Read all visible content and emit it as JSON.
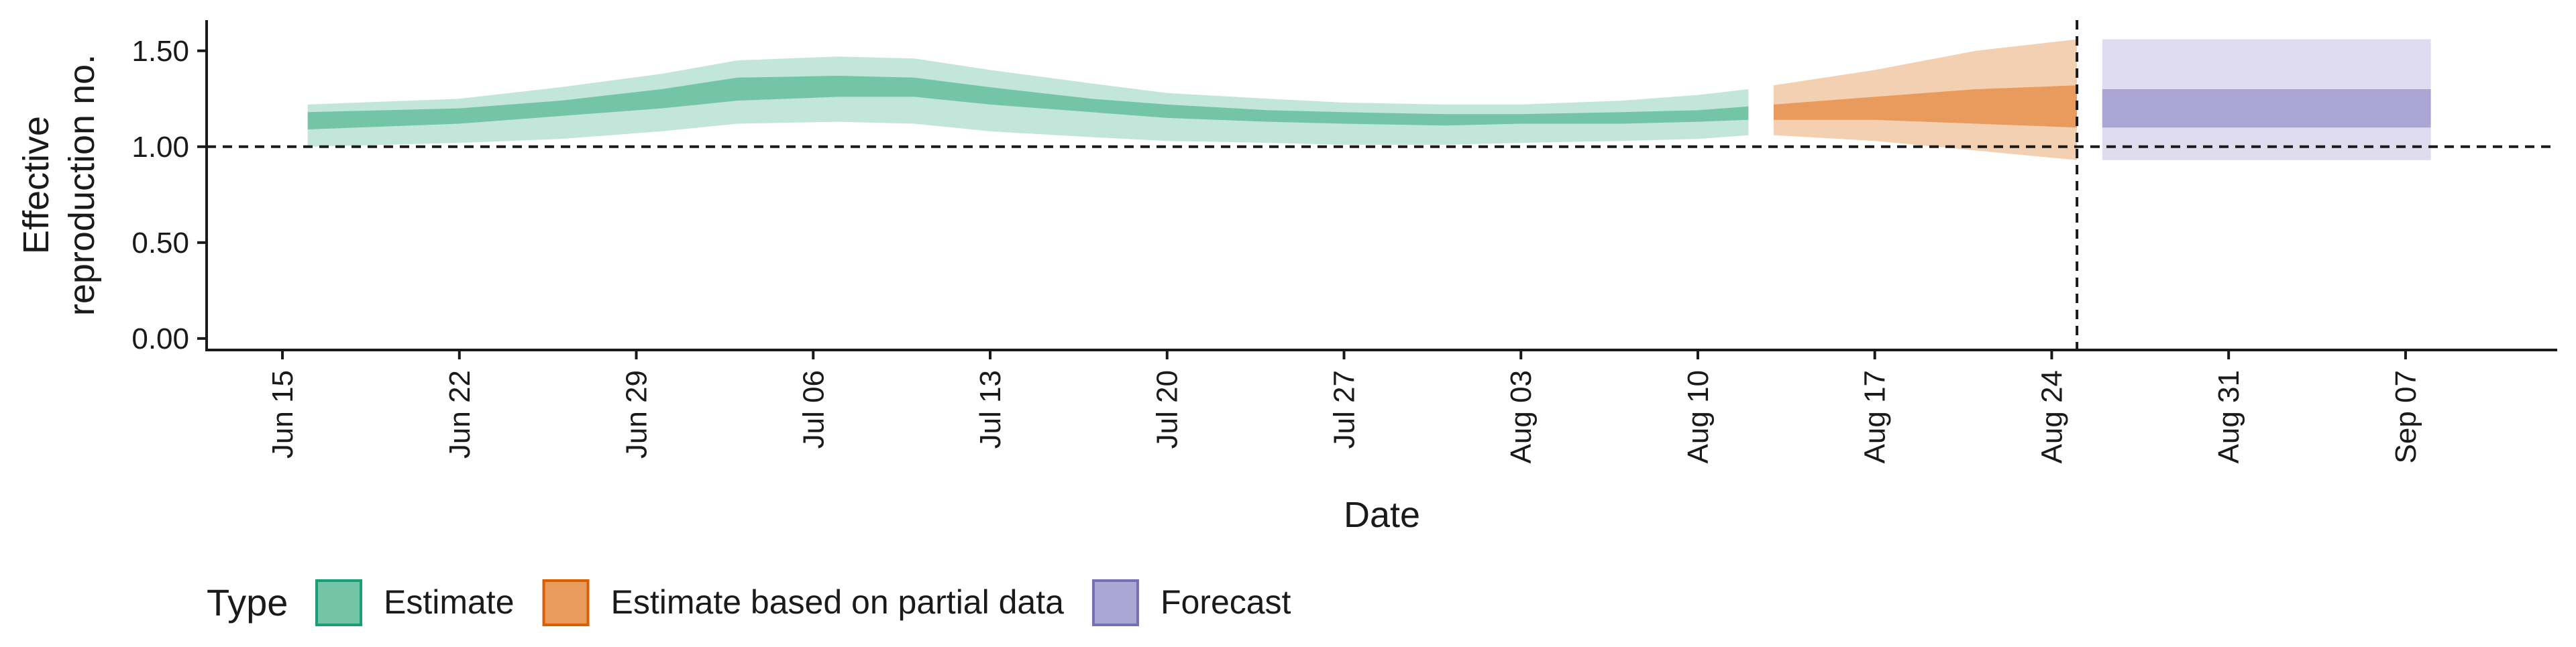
{
  "chart_data": {
    "type": "area",
    "title": "",
    "xlabel": "Date",
    "ylabel_lines": [
      "Effective",
      "reproduction no."
    ],
    "x_tick_labels": [
      "Jun 15",
      "Jun 22",
      "Jun 29",
      "Jul 06",
      "Jul 13",
      "Jul 20",
      "Jul 27",
      "Aug 03",
      "Aug 10",
      "Aug 17",
      "Aug 24",
      "Aug 31",
      "Sep 07"
    ],
    "x_ticks": [
      "2020-06-15",
      "2020-06-22",
      "2020-06-29",
      "2020-07-06",
      "2020-07-13",
      "2020-07-20",
      "2020-07-27",
      "2020-08-03",
      "2020-08-10",
      "2020-08-17",
      "2020-08-24",
      "2020-08-31",
      "2020-09-07"
    ],
    "xlim": [
      "2020-06-12",
      "2020-09-13"
    ],
    "y_ticks": [
      0.0,
      0.5,
      1.0,
      1.5
    ],
    "y_tick_labels": [
      "0.00",
      "0.50",
      "1.00",
      "1.50"
    ],
    "ylim": [
      -0.06,
      1.66
    ],
    "reference_line_y": 1.0,
    "reference_line_x": "2020-08-25",
    "grid": false,
    "legend": {
      "position": "bottom-left",
      "title": "Type",
      "entries": [
        {
          "label": "Estimate",
          "fill": "#74c4a8",
          "border": "#1b9e77"
        },
        {
          "label": "Estimate based on partial data",
          "fill": "#e99b5e",
          "border": "#d95f02"
        },
        {
          "label": "Forecast",
          "fill": "#aba6d3",
          "border": "#7570b3"
        }
      ]
    },
    "series": [
      {
        "name": "Estimate",
        "outer_color": "#c3e6da",
        "inner_color": "#74c4a8",
        "points": [
          {
            "date": "2020-06-16",
            "outer_low": 1.0,
            "outer_high": 1.22,
            "inner_low": 1.09,
            "inner_high": 1.18
          },
          {
            "date": "2020-06-22",
            "outer_low": 1.02,
            "outer_high": 1.25,
            "inner_low": 1.12,
            "inner_high": 1.2
          },
          {
            "date": "2020-06-26",
            "outer_low": 1.04,
            "outer_high": 1.31,
            "inner_low": 1.16,
            "inner_high": 1.24
          },
          {
            "date": "2020-06-30",
            "outer_low": 1.08,
            "outer_high": 1.38,
            "inner_low": 1.2,
            "inner_high": 1.3
          },
          {
            "date": "2020-07-03",
            "outer_low": 1.12,
            "outer_high": 1.45,
            "inner_low": 1.24,
            "inner_high": 1.36
          },
          {
            "date": "2020-07-07",
            "outer_low": 1.13,
            "outer_high": 1.47,
            "inner_low": 1.26,
            "inner_high": 1.37
          },
          {
            "date": "2020-07-10",
            "outer_low": 1.12,
            "outer_high": 1.46,
            "inner_low": 1.26,
            "inner_high": 1.36
          },
          {
            "date": "2020-07-13",
            "outer_low": 1.08,
            "outer_high": 1.4,
            "inner_low": 1.22,
            "inner_high": 1.31
          },
          {
            "date": "2020-07-17",
            "outer_low": 1.05,
            "outer_high": 1.33,
            "inner_low": 1.18,
            "inner_high": 1.25
          },
          {
            "date": "2020-07-20",
            "outer_low": 1.03,
            "outer_high": 1.28,
            "inner_low": 1.15,
            "inner_high": 1.22
          },
          {
            "date": "2020-07-24",
            "outer_low": 1.02,
            "outer_high": 1.25,
            "inner_low": 1.13,
            "inner_high": 1.19
          },
          {
            "date": "2020-07-27",
            "outer_low": 1.01,
            "outer_high": 1.23,
            "inner_low": 1.12,
            "inner_high": 1.18
          },
          {
            "date": "2020-07-31",
            "outer_low": 1.01,
            "outer_high": 1.22,
            "inner_low": 1.11,
            "inner_high": 1.17
          },
          {
            "date": "2020-08-03",
            "outer_low": 1.02,
            "outer_high": 1.22,
            "inner_low": 1.12,
            "inner_high": 1.17
          },
          {
            "date": "2020-08-07",
            "outer_low": 1.03,
            "outer_high": 1.24,
            "inner_low": 1.12,
            "inner_high": 1.18
          },
          {
            "date": "2020-08-10",
            "outer_low": 1.04,
            "outer_high": 1.27,
            "inner_low": 1.13,
            "inner_high": 1.19
          },
          {
            "date": "2020-08-12",
            "outer_low": 1.06,
            "outer_high": 1.3,
            "inner_low": 1.14,
            "inner_high": 1.21
          }
        ]
      },
      {
        "name": "Estimate based on partial data",
        "outer_color": "#f4d0b3",
        "inner_color": "#e99b5e",
        "points": [
          {
            "date": "2020-08-13",
            "outer_low": 1.06,
            "outer_high": 1.32,
            "inner_low": 1.14,
            "inner_high": 1.22
          },
          {
            "date": "2020-08-17",
            "outer_low": 1.03,
            "outer_high": 1.4,
            "inner_low": 1.14,
            "inner_high": 1.26
          },
          {
            "date": "2020-08-21",
            "outer_low": 0.98,
            "outer_high": 1.5,
            "inner_low": 1.12,
            "inner_high": 1.3
          },
          {
            "date": "2020-08-25",
            "outer_low": 0.93,
            "outer_high": 1.56,
            "inner_low": 1.1,
            "inner_high": 1.32
          }
        ]
      },
      {
        "name": "Forecast",
        "outer_color": "#dedcee",
        "inner_color": "#aba6d3",
        "points": [
          {
            "date": "2020-08-26",
            "outer_low": 0.93,
            "outer_high": 1.56,
            "inner_low": 1.1,
            "inner_high": 1.3
          },
          {
            "date": "2020-09-08",
            "outer_low": 0.93,
            "outer_high": 1.56,
            "inner_low": 1.1,
            "inner_high": 1.3
          }
        ]
      }
    ]
  }
}
